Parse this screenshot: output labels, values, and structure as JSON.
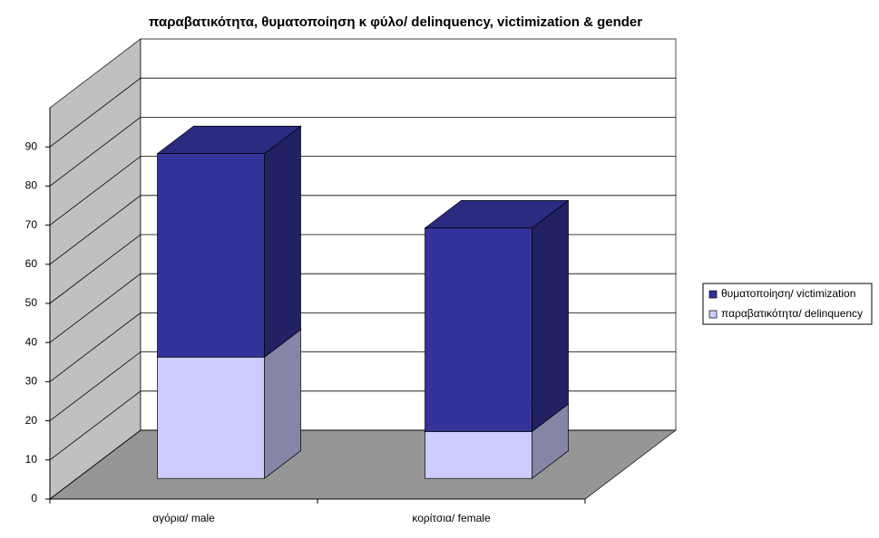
{
  "chart_data": {
    "type": "bar3d_stacked",
    "title": "παραβατικότητα, θυματοποίηση κ φύλο/ delinquency, victimization & gender",
    "categories": [
      "αγόρια/ male",
      "κορίτσια/ female"
    ],
    "series": [
      {
        "name": "παραβατικότητα/ delinquency",
        "color": "#ccccff",
        "values": [
          31,
          12
        ]
      },
      {
        "name": "θυματοποίηση/ victimization",
        "color": "#333399",
        "values": [
          52,
          52
        ]
      }
    ],
    "ylim": [
      0,
      100
    ],
    "yticks": [
      0,
      10,
      20,
      30,
      40,
      50,
      60,
      70,
      80,
      90
    ],
    "grid": true,
    "legend": "right"
  }
}
